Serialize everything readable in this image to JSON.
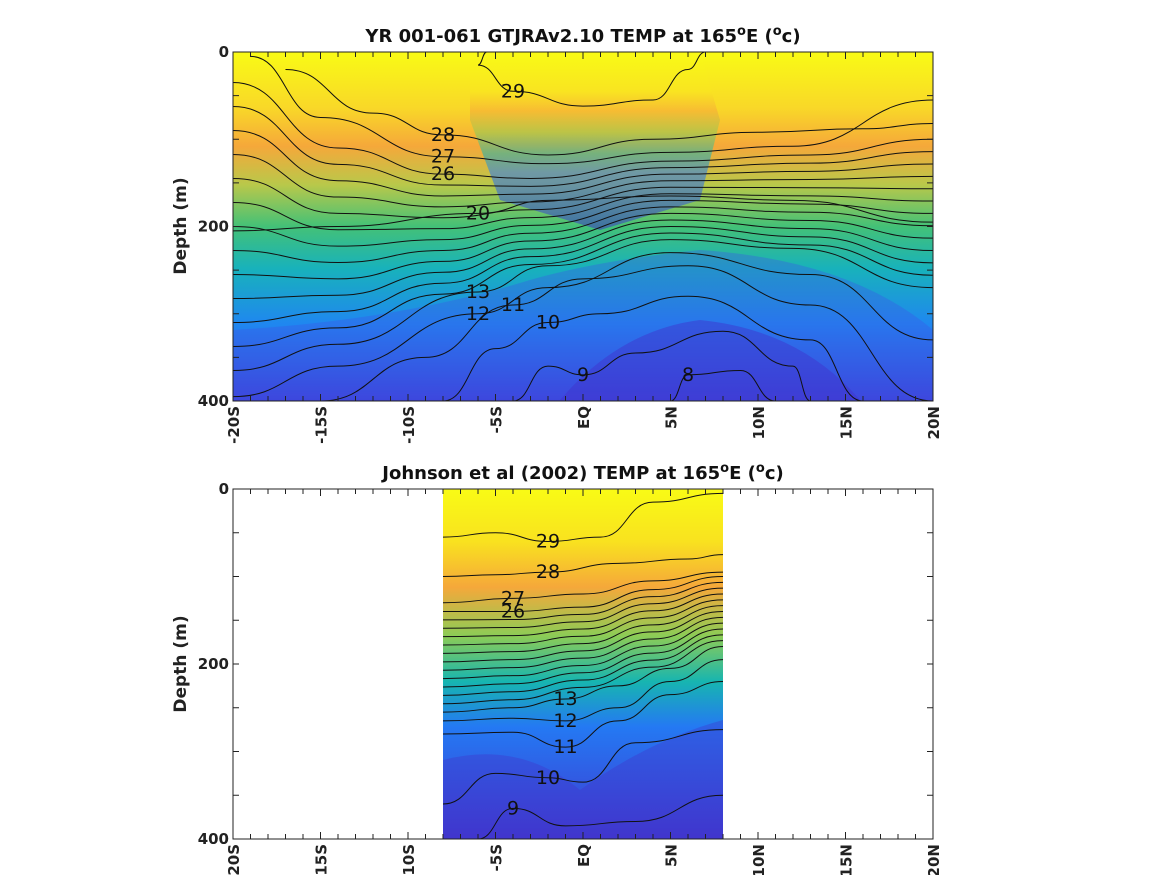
{
  "chart_data": [
    {
      "type": "heatmap",
      "title": "YR 001-061 GTJRAv2.10 TEMP at 165",
      "title_sup1": "o",
      "title_mid": "E (",
      "title_sup2": "o",
      "title_end": "c)",
      "ylabel": "Depth (m)",
      "xlabel": "",
      "xlim": [
        -20,
        20
      ],
      "ylim": [
        0,
        400
      ],
      "y_reversed": true,
      "x_ticks": [
        "-20S",
        "-15S",
        "-10S",
        "-5S",
        "EQ",
        "5N",
        "10N",
        "15N",
        "20N"
      ],
      "y_ticks": [
        "0",
        "200",
        "400"
      ],
      "colormap": [
        "#3e26a8",
        "#2f62ff",
        "#1fa2e6",
        "#14c0a8",
        "#7fcd5a",
        "#f5b93f",
        "#f9fb15"
      ],
      "contour_interval": 1,
      "contours": [
        {
          "value": 29,
          "label": "29",
          "depth_at": [
            [
              -5.5,
              0
            ],
            [
              -6,
              15
            ],
            [
              -4,
              45
            ],
            [
              0,
              62
            ],
            [
              4,
              55
            ],
            [
              6,
              20
            ],
            [
              7,
              0
            ]
          ]
        },
        {
          "value": 28,
          "label": "28",
          "depth_at": [
            [
              -17,
              20
            ],
            [
              -12,
              70
            ],
            [
              -8,
              95
            ],
            [
              -2,
              118
            ],
            [
              4,
              100
            ],
            [
              10,
              92
            ],
            [
              16,
              88
            ],
            [
              20,
              82
            ]
          ]
        },
        {
          "value": 27,
          "label": "27",
          "depth_at": [
            [
              -19,
              5
            ],
            [
              -15,
              75
            ],
            [
              -8,
              120
            ],
            [
              -2,
              128
            ],
            [
              5,
              115
            ],
            [
              12,
              108
            ],
            [
              20,
              55
            ]
          ]
        },
        {
          "value": 26,
          "label": "26",
          "depth_at": [
            [
              -20,
              35
            ],
            [
              -14,
              110
            ],
            [
              -8,
              140
            ],
            [
              -3,
              145
            ],
            [
              5,
              125
            ],
            [
              13,
              118
            ],
            [
              20,
              100
            ]
          ]
        },
        {
          "value": 20,
          "label": "20",
          "depth_at": [
            [
              -20,
              205
            ],
            [
              -14,
              200
            ],
            [
              -6,
              185
            ],
            [
              -2,
              170
            ],
            [
              5,
              165
            ],
            [
              12,
              170
            ],
            [
              20,
              195
            ]
          ]
        },
        {
          "value": 13,
          "label": "13",
          "depth_at": [
            [
              -20,
              365
            ],
            [
              -14,
              335
            ],
            [
              -6,
              275
            ],
            [
              -2,
              245
            ],
            [
              5,
              215
            ],
            [
              12,
              225
            ],
            [
              20,
              270
            ]
          ]
        },
        {
          "value": 12,
          "label": "12",
          "depth_at": [
            [
              -20,
              395
            ],
            [
              -14,
              360
            ],
            [
              -6,
              300
            ],
            [
              -2,
              270
            ],
            [
              5,
              230
            ],
            [
              13,
              255
            ],
            [
              20,
              330
            ]
          ]
        },
        {
          "value": 11,
          "label": "11",
          "depth_at": [
            [
              -15,
              400
            ],
            [
              -9,
              350
            ],
            [
              -4,
              290
            ],
            [
              0,
              260
            ],
            [
              6,
              245
            ],
            [
              13,
              290
            ],
            [
              20,
              400
            ]
          ]
        },
        {
          "value": 10,
          "label": "10",
          "depth_at": [
            [
              -8,
              400
            ],
            [
              -5,
              340
            ],
            [
              -2,
              310
            ],
            [
              1,
              300
            ],
            [
              6,
              280
            ],
            [
              13,
              330
            ],
            [
              16,
              400
            ]
          ]
        },
        {
          "value": 9,
          "label": "9",
          "depth_at": [
            [
              -4,
              400
            ],
            [
              -2,
              360
            ],
            [
              0,
              370
            ],
            [
              3,
              345
            ],
            [
              8,
              320
            ],
            [
              12,
              360
            ],
            [
              13,
              400
            ]
          ]
        },
        {
          "value": 8,
          "label": "8",
          "depth_at": [
            [
              5,
              400
            ],
            [
              6,
              370
            ],
            [
              9,
              365
            ],
            [
              11,
              400
            ]
          ]
        }
      ]
    },
    {
      "type": "heatmap",
      "title": "Johnson et al (2002) TEMP at 165",
      "title_sup1": "o",
      "title_mid": "E (",
      "title_sup2": "o",
      "title_end": "c)",
      "ylabel": "Depth (m)",
      "xlabel": "",
      "xlim": [
        -20,
        20
      ],
      "ylim": [
        0,
        400
      ],
      "y_reversed": true,
      "data_x_range": [
        -8,
        8
      ],
      "x_ticks": [
        "-20S",
        "-15S",
        "-10S",
        "-5S",
        "EQ",
        "5N",
        "10N",
        "15N",
        "20N"
      ],
      "y_ticks": [
        "0",
        "200",
        "400"
      ],
      "colormap": [
        "#3e26a8",
        "#2f62ff",
        "#1fa2e6",
        "#14c0a8",
        "#7fcd5a",
        "#f5b93f",
        "#f9fb15"
      ],
      "contour_interval": 1,
      "contours": [
        {
          "value": 29,
          "label": "29",
          "depth_at": [
            [
              -8,
              55
            ],
            [
              -5,
              50
            ],
            [
              -2,
              60
            ],
            [
              1,
              55
            ],
            [
              4,
              15
            ],
            [
              8,
              5
            ]
          ]
        },
        {
          "value": 28,
          "label": "28",
          "depth_at": [
            [
              -8,
              100
            ],
            [
              -5,
              98
            ],
            [
              -2,
              95
            ],
            [
              2,
              85
            ],
            [
              6,
              80
            ],
            [
              8,
              75
            ]
          ]
        },
        {
          "value": 27,
          "label": "27",
          "depth_at": [
            [
              -8,
              130
            ],
            [
              -4,
              125
            ],
            [
              0,
              120
            ],
            [
              4,
              105
            ],
            [
              8,
              95
            ]
          ]
        },
        {
          "value": 26,
          "label": "26",
          "depth_at": [
            [
              -8,
              140
            ],
            [
              -4,
              140
            ],
            [
              0,
              135
            ],
            [
              4,
              115
            ],
            [
              8,
              100
            ]
          ]
        },
        {
          "value": 13,
          "label": "13",
          "depth_at": [
            [
              -8,
              255
            ],
            [
              -4,
              250
            ],
            [
              -1,
              240
            ],
            [
              2,
              225
            ],
            [
              5,
              205
            ],
            [
              8,
              180
            ]
          ]
        },
        {
          "value": 12,
          "label": "12",
          "depth_at": [
            [
              -8,
              265
            ],
            [
              -4,
              262
            ],
            [
              -1,
              265
            ],
            [
              2,
              250
            ],
            [
              5,
              220
            ],
            [
              8,
              195
            ]
          ]
        },
        {
          "value": 11,
          "label": "11",
          "depth_at": [
            [
              -8,
              280
            ],
            [
              -4,
              278
            ],
            [
              -1,
              295
            ],
            [
              2,
              265
            ],
            [
              5,
              235
            ],
            [
              8,
              220
            ]
          ]
        },
        {
          "value": 10,
          "label": "10",
          "depth_at": [
            [
              -8,
              360
            ],
            [
              -5,
              325
            ],
            [
              -2,
              330
            ],
            [
              0,
              335
            ],
            [
              3,
              290
            ],
            [
              8,
              275
            ]
          ]
        },
        {
          "value": 9,
          "label": "9",
          "depth_at": [
            [
              -6,
              400
            ],
            [
              -4,
              365
            ],
            [
              -1,
              385
            ],
            [
              3,
              380
            ],
            [
              8,
              350
            ]
          ]
        }
      ]
    }
  ]
}
